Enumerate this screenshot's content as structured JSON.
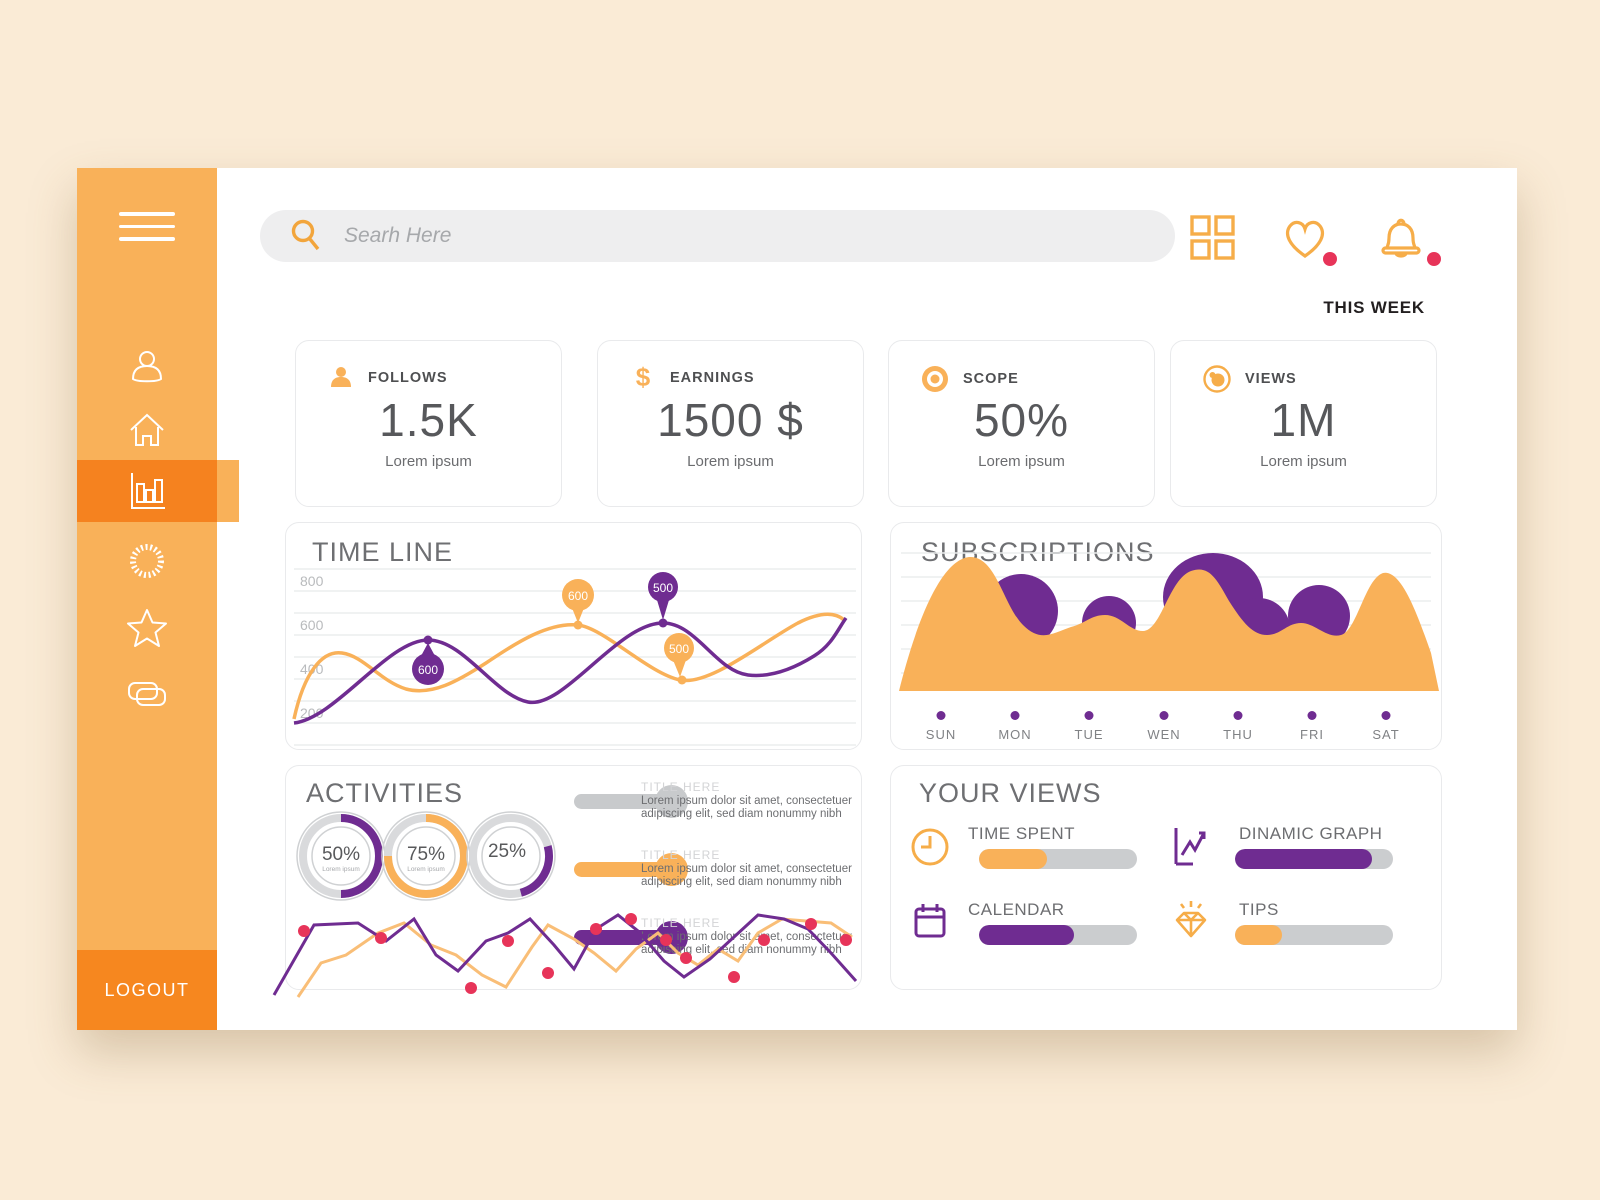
{
  "topbar": {
    "search_placeholder": "Searh Here",
    "period_label": "THIS WEEK",
    "icons": [
      "grid-icon",
      "heart-icon",
      "bell-icon"
    ],
    "notification_dot_color": "#E73459"
  },
  "sidebar": {
    "logout_label": "LOGOUT",
    "items": [
      {
        "name": "user"
      },
      {
        "name": "home"
      },
      {
        "name": "bar-chart",
        "active": true
      },
      {
        "name": "sun"
      },
      {
        "name": "star"
      },
      {
        "name": "cards"
      }
    ]
  },
  "colors": {
    "background": "#FAEBD6",
    "sidebar_orange": "#F9B159",
    "active_orange": "#F5821F",
    "logout_orange": "#F6871F",
    "accent_orange": "#F9B159",
    "purple": "#6F2C91",
    "crimson": "#E73459",
    "gray_track": "#CBCDCF"
  },
  "stats": [
    {
      "icon": "user-icon",
      "label": "FOLLOWS",
      "value": "1.5K",
      "sub": "Lorem ipsum"
    },
    {
      "icon": "dollar-icon",
      "label": "EARNINGS",
      "value": "1500 $",
      "sub": "Lorem ipsum"
    },
    {
      "icon": "target-icon",
      "label": "SCOPE",
      "value": "50%",
      "sub": "Lorem ipsum"
    },
    {
      "icon": "eye-icon",
      "label": "VIEWS",
      "value": "1M",
      "sub": "Lorem ipsum"
    }
  ],
  "timeline": {
    "title": "TIME LINE",
    "y_ticks": [
      "800",
      "600",
      "400",
      "200"
    ],
    "markers": [
      {
        "label": "600",
        "series": "purple",
        "shape": "teardrop-up"
      },
      {
        "label": "600",
        "series": "orange",
        "shape": "balloon-down"
      },
      {
        "label": "500",
        "series": "purple",
        "shape": "balloon-down"
      },
      {
        "label": "500",
        "series": "orange",
        "shape": "balloon-down"
      }
    ]
  },
  "subscriptions": {
    "title": "SUBSCRIPTIONS",
    "days": [
      "SUN",
      "MON",
      "TUE",
      "WEN",
      "THU",
      "FRI",
      "SAT"
    ]
  },
  "activities": {
    "title": "ACTIVITIES",
    "donuts": [
      {
        "percent": 50,
        "text": "50%",
        "sub": "Lorem ipsum",
        "color": "#6F2C91"
      },
      {
        "percent": 75,
        "text": "75%",
        "sub": "Lorem ipsum",
        "color": "#F9B159"
      },
      {
        "percent": 25,
        "text": "25%",
        "sub": "",
        "color": "#6F2C91"
      }
    ],
    "legend": [
      {
        "color": "#C8CACC",
        "title": "TITLE HERE",
        "line1": "Lorem ipsum dolor sit amet, consectetuer",
        "line2": "adipiscing elit, sed diam nonummy nibh"
      },
      {
        "color": "#F9B159",
        "title": "TITLE HERE",
        "line1": "Lorem ipsum dolor sit amet, consectetuer",
        "line2": "adipiscing elit, sed diam nonummy nibh"
      },
      {
        "color": "#6F2C91",
        "title": "TITLE HERE",
        "line1": "Lorem ipsum dolor sit amet, consectetuer",
        "line2": "adipiscing elit, sed diam nonummy nibh"
      }
    ]
  },
  "your_views": {
    "title": "YOUR VIEWS",
    "items": [
      {
        "icon": "clock-icon",
        "label": "TIME SPENT",
        "percent": 43,
        "color": "#F9B159"
      },
      {
        "icon": "graph-icon",
        "label": "DINAMIC GRAPH",
        "percent": 87,
        "color": "#6F2C91"
      },
      {
        "icon": "calendar-icon",
        "label": "CALENDAR",
        "percent": 60,
        "color": "#6F2C91"
      },
      {
        "icon": "diamond-icon",
        "label": "TIPS",
        "percent": 30,
        "color": "#F9B159"
      }
    ]
  },
  "chart_data": [
    {
      "type": "line",
      "title": "TIME LINE",
      "ylim": [
        200,
        800
      ],
      "y_ticks": [
        800,
        600,
        400,
        200
      ],
      "series": [
        {
          "name": "orange",
          "color": "#F9B159",
          "values": [
            250,
            480,
            430,
            350,
            300,
            420,
            600,
            650,
            560,
            430,
            400,
            480,
            620,
            660
          ]
        },
        {
          "name": "purple",
          "color": "#6F2C91",
          "values": [
            220,
            260,
            420,
            580,
            540,
            420,
            340,
            420,
            640,
            690,
            600,
            480,
            430,
            560
          ]
        }
      ],
      "markers": [
        {
          "series": "purple",
          "value": 600
        },
        {
          "series": "orange",
          "value": 600
        },
        {
          "series": "purple",
          "value": 500
        },
        {
          "series": "orange",
          "value": 500
        }
      ],
      "grid": true,
      "legend_position": "none"
    },
    {
      "type": "area",
      "title": "SUBSCRIPTIONS",
      "categories": [
        "SUN",
        "MON",
        "TUE",
        "WEN",
        "THU",
        "FRI",
        "SAT"
      ],
      "series": [
        {
          "name": "orange",
          "color": "#F9B159",
          "values": [
            95,
            55,
            62,
            85,
            50,
            60,
            88
          ]
        },
        {
          "name": "purple",
          "color": "#6F2C91",
          "values": [
            0,
            78,
            58,
            95,
            80,
            75,
            0
          ]
        }
      ],
      "grid": true,
      "legend_position": "none"
    },
    {
      "type": "pie",
      "title": "ACTIVITIES donuts",
      "values": [
        50,
        75,
        25
      ]
    },
    {
      "type": "line",
      "title": "ACTIVITIES trend",
      "series": [
        {
          "name": "purple",
          "color": "#6F2C91",
          "values": [
            5,
            80,
            80,
            60,
            85,
            45,
            25,
            60,
            65,
            80,
            55,
            30,
            75,
            90,
            70,
            40,
            20,
            45,
            65,
            90,
            85,
            75,
            50,
            20
          ]
        },
        {
          "name": "orange",
          "color": "#F9B159",
          "values": [
            0,
            35,
            45,
            70,
            80,
            55,
            45,
            20,
            10,
            55,
            75,
            60,
            50,
            30,
            55,
            70,
            50,
            40,
            55,
            45,
            70,
            85,
            80,
            60
          ]
        }
      ],
      "point_color": "#E73459"
    },
    {
      "type": "bar",
      "title": "YOUR VIEWS progress",
      "categories": [
        "TIME SPENT",
        "DINAMIC GRAPH",
        "CALENDAR",
        "TIPS"
      ],
      "values": [
        43,
        87,
        60,
        30
      ],
      "ylim": [
        0,
        100
      ]
    }
  ]
}
